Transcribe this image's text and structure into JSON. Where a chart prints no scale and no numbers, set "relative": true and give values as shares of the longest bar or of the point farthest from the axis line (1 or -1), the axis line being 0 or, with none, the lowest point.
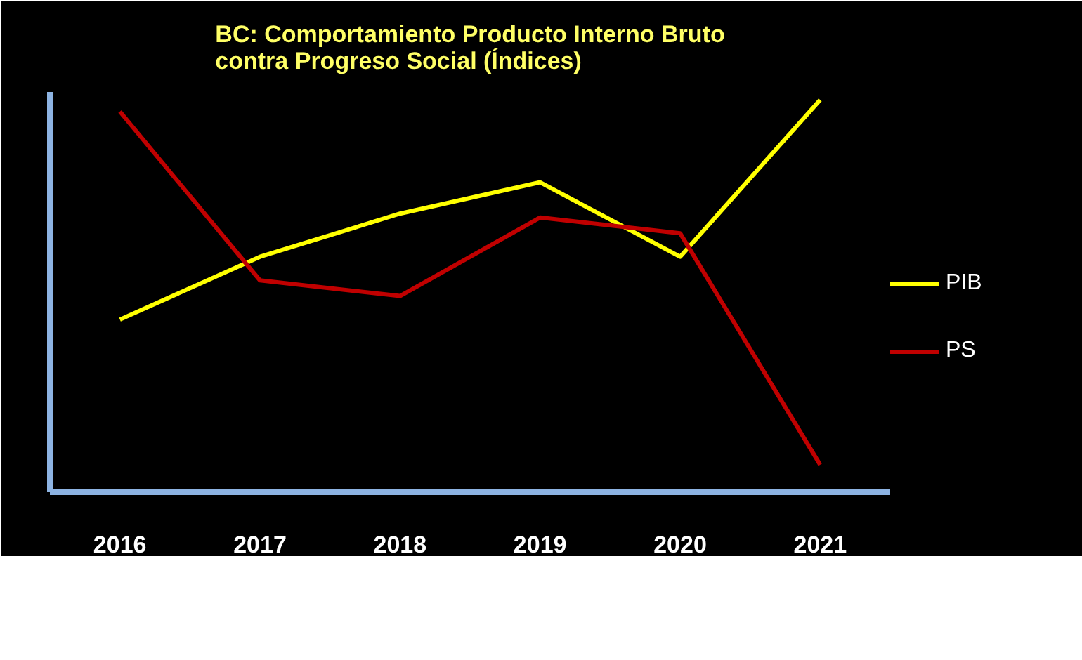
{
  "chart_data": {
    "type": "line",
    "title": "BC: Comportamiento Producto Interno Bruto\ncontra Progreso Social  (Índices)",
    "categories": [
      "2016",
      "2017",
      "2018",
      "2019",
      "2020",
      "2021"
    ],
    "relative": true,
    "legend": "right",
    "tick_labels": "x",
    "series": [
      {
        "name": "PIB",
        "color": "#ffff00",
        "values": [
          0.44,
          0.6,
          0.71,
          0.79,
          0.6,
          1.0
        ]
      },
      {
        "name": "PS",
        "color": "#c00000",
        "values": [
          0.97,
          0.54,
          0.5,
          0.7,
          0.66,
          0.07
        ]
      }
    ]
  }
}
